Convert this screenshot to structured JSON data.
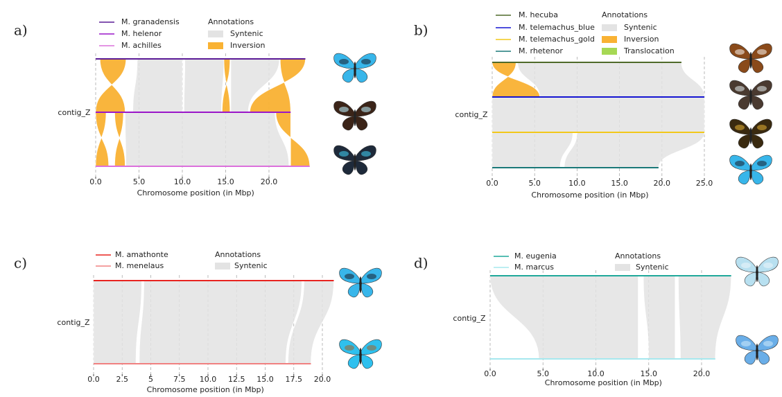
{
  "chart_data": [
    {
      "type": "synteny",
      "panel_label": "a)",
      "ylabel": "contig_Z",
      "xlabel": "Chromosome position (in Mbp)",
      "legend_title": "Annotations",
      "grid": true,
      "xlim": [
        0,
        25
      ],
      "xticks": [
        {
          "value": 0,
          "label": "0.0"
        },
        {
          "value": 5,
          "label": "5.0"
        },
        {
          "value": 10,
          "label": "10.0"
        },
        {
          "value": 15,
          "label": "15.0"
        },
        {
          "value": 20,
          "label": "20.0"
        }
      ],
      "series": [
        {
          "name": "M. granadensis",
          "color": "#5a1a96",
          "length": 24.2
        },
        {
          "name": "M. helenor",
          "color": "#9a16c8",
          "length": 22.5
        },
        {
          "name": "M. achilles",
          "color": "#dc70dc",
          "length": 24.7
        }
      ],
      "annotations": [
        {
          "name": "Syntenic",
          "color": "#e3e3e3"
        },
        {
          "name": "Inversion",
          "color": "#f9b233"
        }
      ],
      "links": [
        {
          "from": 0,
          "to": 1,
          "annotation": 0,
          "blocks": [
            [
              4.8,
              10,
              4.3,
              10
            ],
            [
              10.3,
              14.8,
              10.2,
              14.5
            ],
            [
              15.6,
              21.2,
              15.6,
              17.6
            ]
          ]
        },
        {
          "from": 0,
          "to": 1,
          "annotation": 1,
          "blocks": [
            [
              0.5,
              3.5,
              0,
              3.4
            ],
            [
              14.8,
              15.5,
              14.6,
              15.5
            ],
            [
              21.3,
              24.2,
              17.8,
              22.5
            ]
          ]
        },
        {
          "from": 1,
          "to": 2,
          "annotation": 0,
          "blocks": [
            [
              3.4,
              20.7,
              3.5,
              22.3
            ]
          ]
        },
        {
          "from": 1,
          "to": 2,
          "annotation": 1,
          "blocks": [
            [
              0,
              1.2,
              0,
              1.5
            ],
            [
              2.2,
              3.2,
              2.2,
              3.4
            ],
            [
              20.8,
              22.5,
              22.5,
              24.7
            ]
          ]
        }
      ]
    },
    {
      "type": "synteny",
      "panel_label": "b)",
      "ylabel": "contig_Z",
      "xlabel": "Chromosome position (in Mbp)",
      "legend_title": "Annotations",
      "grid": true,
      "xlim": [
        0,
        25
      ],
      "xticks": [
        {
          "value": 0,
          "label": "0.0"
        },
        {
          "value": 5,
          "label": "5.0"
        },
        {
          "value": 10,
          "label": "10.0"
        },
        {
          "value": 15,
          "label": "15.0"
        },
        {
          "value": 20,
          "label": "20.0"
        },
        {
          "value": 25,
          "label": "25.0"
        }
      ],
      "series": [
        {
          "name": "M. hecuba",
          "color": "#4f6a2a",
          "length": 22.3
        },
        {
          "name": "M. telemachus_blue",
          "color": "#1414d2",
          "length": 25
        },
        {
          "name": "M. telemachus_gold",
          "color": "#f2c81a",
          "length": 25
        },
        {
          "name": "M. rhetenor",
          "color": "#1a7878",
          "length": 19.6
        }
      ],
      "annotations": [
        {
          "name": "Syntenic",
          "color": "#e3e3e3"
        },
        {
          "name": "Inversion",
          "color": "#f9b233"
        },
        {
          "name": "Translocation",
          "color": "#a6d854"
        }
      ],
      "links": [
        {
          "from": 0,
          "to": 1,
          "annotation": 0,
          "blocks": [
            [
              3,
              22.3,
              5.6,
              25
            ]
          ]
        },
        {
          "from": 0,
          "to": 1,
          "annotation": 1,
          "blocks": [
            [
              0,
              2.8,
              0,
              5.6
            ]
          ]
        },
        {
          "from": 1,
          "to": 2,
          "annotation": 0,
          "blocks": [
            [
              0,
              25,
              0,
              25
            ]
          ]
        },
        {
          "from": 2,
          "to": 3,
          "annotation": 0,
          "blocks": [
            [
              0,
              9.5,
              0,
              8
            ],
            [
              10,
              25,
              8.5,
              19.6
            ]
          ]
        }
      ]
    },
    {
      "type": "synteny",
      "panel_label": "c)",
      "ylabel": "contig_Z",
      "xlabel": "Chromosome position (in Mbp)",
      "legend_title": "Annotations",
      "grid": true,
      "xlim": [
        0,
        21
      ],
      "xticks": [
        {
          "value": 0,
          "label": "0.0"
        },
        2.5,
        5,
        7.5,
        {
          "value": 10,
          "label": "10.0"
        },
        12.5,
        {
          "value": 15,
          "label": "15.0"
        },
        17.5,
        {
          "value": 20,
          "label": "20.0"
        }
      ],
      "series": [
        {
          "name": "M. amathonte",
          "color": "#e8231f",
          "length": 21
        },
        {
          "name": "M. menelaus",
          "color": "#f08080",
          "length": 19
        }
      ],
      "annotations": [
        {
          "name": "Syntenic",
          "color": "#e3e3e3"
        }
      ],
      "links": [
        {
          "from": 0,
          "to": 1,
          "annotation": 0,
          "blocks": [
            [
              0,
              4.2,
              0,
              3.7
            ],
            [
              4.4,
              18.2,
              4,
              16.8
            ],
            [
              18.4,
              21,
              17,
              19
            ]
          ]
        }
      ]
    },
    {
      "type": "synteny",
      "panel_label": "d)",
      "ylabel": "contig_Z",
      "xlabel": "Chromosome position (in Mbp)",
      "legend_title": "Annotations",
      "grid": true,
      "xlim": [
        0,
        23
      ],
      "xticks": [
        {
          "value": 0,
          "label": "0.0"
        },
        {
          "value": 5,
          "label": "5.0"
        },
        {
          "value": 10,
          "label": "10.0"
        },
        {
          "value": 15,
          "label": "15.0"
        },
        {
          "value": 20,
          "label": "20.0"
        }
      ],
      "series": [
        {
          "name": "M. eugenia",
          "color": "#1fa89a",
          "length": 22.8
        },
        {
          "name": "M. marcus",
          "color": "#a6e8ee",
          "length": 21.3
        }
      ],
      "annotations": [
        {
          "name": "Syntenic",
          "color": "#e3e3e3"
        }
      ],
      "links": [
        {
          "from": 0,
          "to": 1,
          "annotation": 0,
          "blocks": [
            [
              0,
              14,
              4.6,
              14
            ],
            [
              14.5,
              17.5,
              15,
              17.5
            ],
            [
              17.8,
              22.8,
              18,
              21.3
            ]
          ]
        }
      ]
    }
  ]
}
